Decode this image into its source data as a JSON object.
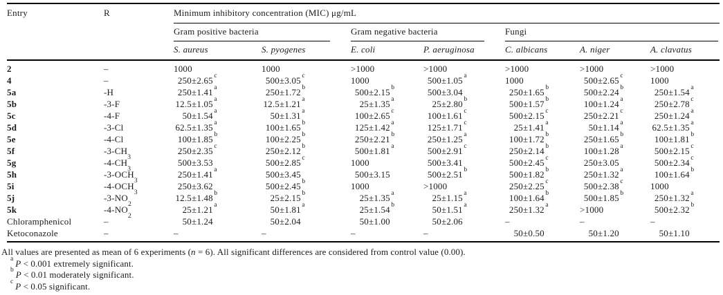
{
  "table": {
    "header": {
      "entry": "Entry",
      "r": "R",
      "mic": "Minimum inhibitory concentration (MIC) μg/mL",
      "groups": [
        {
          "label": "Gram positive bacteria",
          "cols": [
            "S. aureus",
            "S. pyogenes"
          ]
        },
        {
          "label": "Gram negative bacteria",
          "cols": [
            "E. coli",
            "P. aeruginosa"
          ]
        },
        {
          "label": "Fungi",
          "cols": [
            "C. albicans",
            "A. niger",
            "A. clavatus"
          ]
        }
      ]
    },
    "rows": [
      {
        "entry": "2",
        "r": "–",
        "values": [
          "1000",
          "1000",
          ">1000",
          ">1000",
          ">1000",
          ">1000",
          ">1000"
        ]
      },
      {
        "entry": "4",
        "r": "–",
        "values": [
          "250±2.65^c",
          "500±3.05^c",
          "1000",
          "500±1.05^a",
          "1000",
          "500±2.65^c",
          "1000"
        ]
      },
      {
        "entry": "5a",
        "r": "-H",
        "values": [
          "250±1.41^a",
          "250±1.72^b",
          "500±2.15^b",
          "500±3.04",
          "250±1.65^b",
          "500±2.24^b",
          "250±1.54^a"
        ]
      },
      {
        "entry": "5b",
        "r": "-3-F",
        "values": [
          "12.5±1.05^a",
          "12.5±1.21^a",
          "25±1.35^a",
          "25±2.80^b",
          "500±1.57^b",
          "100±1.24^a",
          "250±2.78^c"
        ]
      },
      {
        "entry": "5c",
        "r": "-4-F",
        "values": [
          "50±1.54^a",
          "50±1.31^a",
          "100±2.65^c",
          "100±1.61^c",
          "500±2.15^c",
          "250±2.21^c",
          "250±1.24^a"
        ]
      },
      {
        "entry": "5d",
        "r": "-3-Cl",
        "values": [
          "62.5±1.35^a",
          "100±1.65^b",
          "125±1.42^a",
          "125±1.71^c",
          "25±1.41^a",
          "50±1.14^a",
          "62.5±1.35^a"
        ]
      },
      {
        "entry": "5e",
        "r": "-4-Cl",
        "values": [
          "100±1.85^b",
          "100±2.25^b",
          "250±2.21^b",
          "250±1.25^a",
          "100±1.72^b",
          "250±1.65^b",
          "100±1.81^b"
        ]
      },
      {
        "entry": "5f",
        "r": "-3-CH~3",
        "values": [
          "250±2.35^c",
          "250±2.12^b",
          "500±1.81^a",
          "500±2.91^c",
          "250±2.14^b",
          "100±1.28^a",
          "500±2.15^c"
        ]
      },
      {
        "entry": "5g",
        "r": "-4-CH~3",
        "values": [
          "500±3.53",
          "500±2.85^c",
          "1000",
          "500±3.41",
          "500±2.45^c",
          "250±3.05",
          "500±2.34^c"
        ]
      },
      {
        "entry": "5h",
        "r": "-3-OCH~3",
        "values": [
          "250±1.41^a",
          "500±3.45",
          "500±3.15",
          "500±2.51^b",
          "500±1.82^b",
          "250±1.32^a",
          "100±1.64^b"
        ]
      },
      {
        "entry": "5i",
        "r": "-4-OCH~3",
        "values": [
          "250±3.62",
          "500±2.45^b",
          "1000",
          ">1000",
          "250±2.25^c",
          "500±2.38^c",
          "1000"
        ]
      },
      {
        "entry": "5j",
        "r": "-3-NO~2",
        "values": [
          "12.5±1.48^b",
          "25±2.15^b",
          "25±1.35^a",
          "25±1.15^a",
          "100±1.64^b",
          "500±1.85^b",
          "250±1.32^a"
        ]
      },
      {
        "entry": "5k",
        "r": "-4-NO~2",
        "values": [
          "25±1.21^a",
          "50±1.81^a",
          "25±1.54^b",
          "50±1.51^a",
          "250±1.32^a",
          ">1000",
          "500±2.32^b"
        ]
      },
      {
        "entry": "Chloramphenicol",
        "r": "–",
        "values": [
          "50±1.24",
          "50±2.04",
          "50±1.00",
          "50±2.06",
          "–",
          "–",
          "–"
        ]
      },
      {
        "entry": "Ketoconazole",
        "r": "–",
        "values": [
          "–",
          "–",
          "–",
          "–",
          "50±0.50",
          "50±1.20",
          "50±1.10"
        ]
      }
    ]
  },
  "footnotes": {
    "general": "All values are presented as mean of 6 experiments (*n* = 6). All significant differences are considered from control value (0.00).",
    "items": [
      {
        "sup": "a",
        "text": "*P* < 0.001 extremely significant."
      },
      {
        "sup": "b",
        "text": "*P* < 0.01 moderately significant."
      },
      {
        "sup": "c",
        "text": "*P* < 0.05 significant."
      }
    ]
  }
}
